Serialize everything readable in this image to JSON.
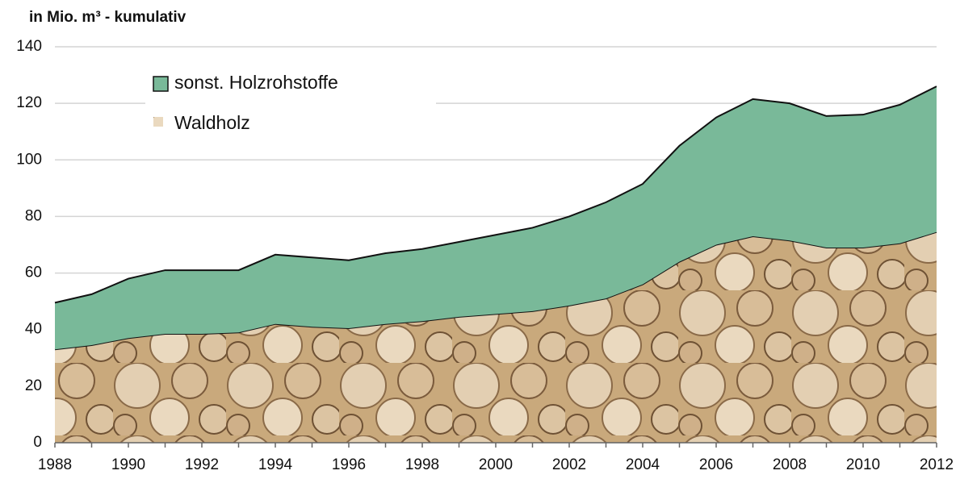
{
  "chart_data": {
    "type": "stacked-area",
    "title": "in Mio. m³ - kumulativ",
    "x": [
      1988,
      1989,
      1990,
      1991,
      1992,
      1993,
      1994,
      1995,
      1996,
      1997,
      1998,
      1999,
      2000,
      2001,
      2002,
      2003,
      2004,
      2005,
      2006,
      2007,
      2008,
      2009,
      2010,
      2011,
      2012
    ],
    "series": [
      {
        "name": "Waldholz",
        "color": "#c9a97c",
        "values": [
          33,
          34.5,
          37,
          38.5,
          38.5,
          39,
          42,
          41,
          40.5,
          42,
          43,
          44.5,
          45.5,
          46.5,
          48.5,
          51,
          56,
          64,
          70,
          73,
          71.5,
          69,
          69,
          70.5,
          74.5
        ]
      },
      {
        "name": "sonst. Holzrohstoffe",
        "color": "#79b999",
        "values": [
          16.5,
          18,
          21,
          22.5,
          22.5,
          22,
          24.5,
          24.5,
          24,
          25,
          25.5,
          26.5,
          28,
          29.5,
          31.5,
          34,
          35.5,
          41,
          45,
          48.5,
          48.5,
          46.5,
          47,
          49,
          51.5
        ]
      }
    ],
    "xlim": [
      1988,
      2012
    ],
    "xticks": [
      1988,
      1990,
      1992,
      1994,
      1996,
      1998,
      2000,
      2002,
      2004,
      2006,
      2008,
      2010,
      2012
    ],
    "ylim": [
      0,
      140
    ],
    "yticks": [
      0,
      20,
      40,
      60,
      80,
      100,
      120,
      140
    ],
    "grid": true,
    "legend": "upper-left"
  }
}
